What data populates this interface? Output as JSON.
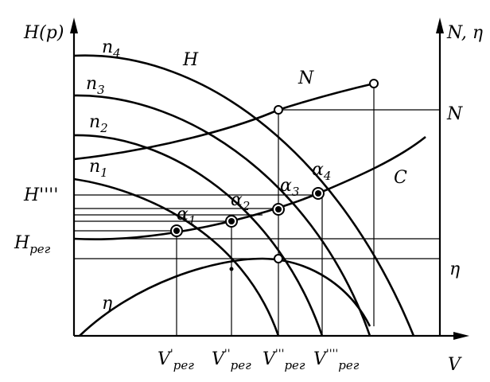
{
  "axes": {
    "left_label": "H(p)",
    "right_label": "N, η",
    "x_label": "V",
    "h4_label": "H''''",
    "hreg_label": {
      "base": "H",
      "sub": "рег"
    },
    "n_right_label": "N",
    "eta_right_label": "η"
  },
  "curves": {
    "n4": {
      "base": "n",
      "sub": "4"
    },
    "n3": {
      "base": "n",
      "sub": "3"
    },
    "n2": {
      "base": "n",
      "sub": "2"
    },
    "n1": {
      "base": "n",
      "sub": "1"
    },
    "h": "H",
    "n": "N",
    "c": "C",
    "eta": "η"
  },
  "points": [
    {
      "base": "α",
      "sub": "1"
    },
    {
      "base": "α",
      "sub": "2"
    },
    {
      "base": "α",
      "sub": "3"
    },
    {
      "base": "α",
      "sub": "4"
    }
  ],
  "flows": [
    {
      "base": "V",
      "sup": "'",
      "sub": "рег"
    },
    {
      "base": "V",
      "sup": "''",
      "sub": "рег"
    },
    {
      "base": "V",
      "sup": "'''",
      "sub": "рег"
    },
    {
      "base": "V",
      "sup": "''''",
      "sub": "рег"
    }
  ]
}
